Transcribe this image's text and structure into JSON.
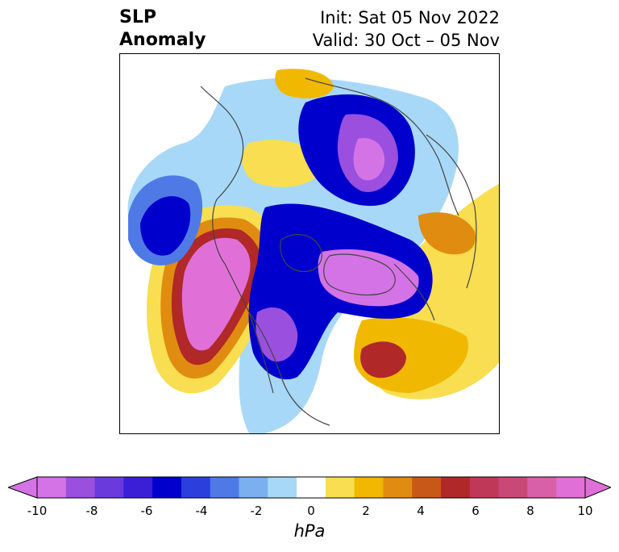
{
  "header": {
    "title_line1": "SLP",
    "title_line2": "Anomaly",
    "init": "Init: Sat 05 Nov 2022",
    "valid": "Valid: 30 Oct – 05 Nov"
  },
  "colorbar": {
    "unit": "hPa",
    "ticks": [
      "-10",
      "-8",
      "-6",
      "-4",
      "-2",
      "0",
      "2",
      "4",
      "6",
      "8",
      "10"
    ],
    "colors": [
      "#d473e6",
      "#9a4fde",
      "#6a3adc",
      "#3a1fd6",
      "#0000cc",
      "#2a3fdc",
      "#4f7ae6",
      "#7ab0f0",
      "#a8d8f8",
      "#ffffff",
      "#f8de50",
      "#f0b800",
      "#e08c10",
      "#c85818",
      "#b02828",
      "#c03858",
      "#c84878",
      "#d860a8",
      "#e070d8"
    ],
    "under_color": "#d473e6",
    "over_color": "#e070d8"
  }
}
